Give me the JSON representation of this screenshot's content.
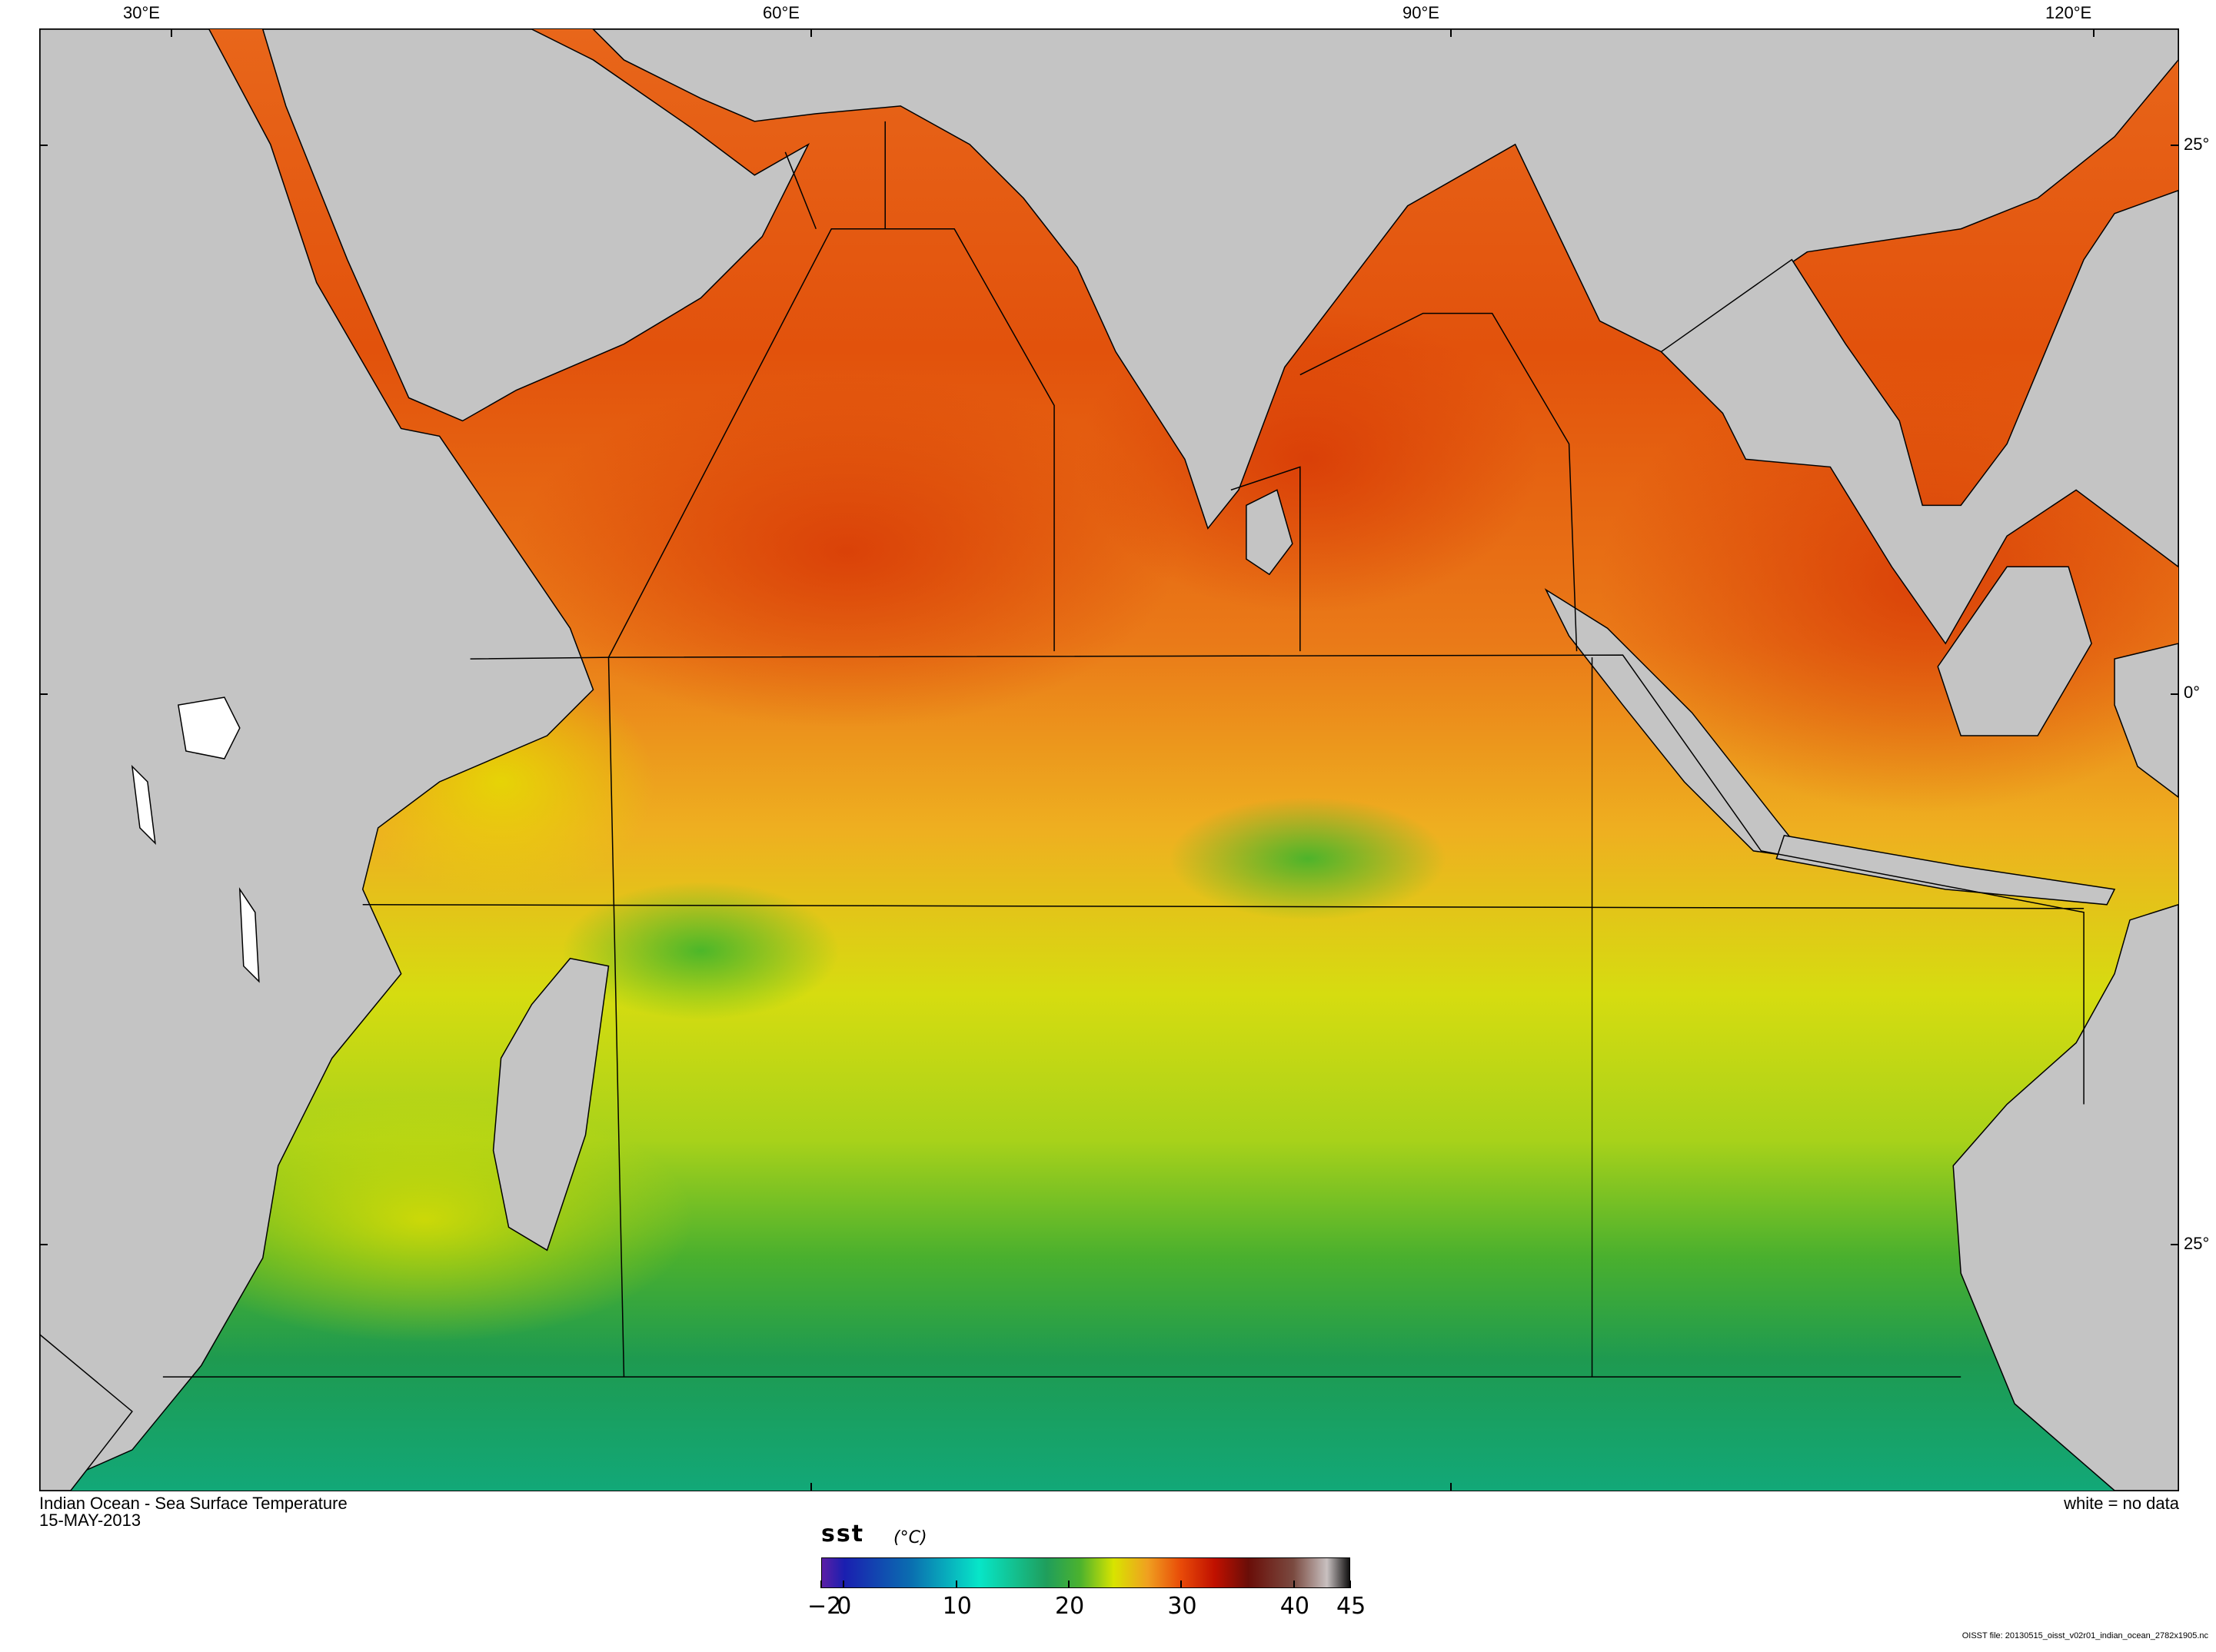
{
  "map": {
    "title": "Indian Ocean - Sea Surface Temperature",
    "date": "15-MAY-2013",
    "no_data_note": "white = no data",
    "file_note": "OISST file: 20130515_oisst_v02r01_indian_ocean_2782x1905.nc",
    "longitude_labels": [
      "30°E",
      "60°E",
      "90°E",
      "120°E"
    ],
    "latitude_labels": [
      "25°",
      "0°",
      "25°"
    ],
    "land_color": "#c4c4c4",
    "no_data_color": "#ffffff"
  },
  "colorbar": {
    "variable": "sst",
    "unit": "(°C)",
    "tick_labels": [
      "−2",
      "0",
      "10",
      "20",
      "30",
      "40",
      "45"
    ],
    "range": [
      -2,
      45
    ],
    "stops": [
      {
        "value": -2,
        "color": "#5b1fa6"
      },
      {
        "value": 0,
        "color": "#1a1fb0"
      },
      {
        "value": 6,
        "color": "#0a6fb0"
      },
      {
        "value": 12,
        "color": "#07e6c8"
      },
      {
        "value": 18,
        "color": "#1f9e5c"
      },
      {
        "value": 21,
        "color": "#4bb22e"
      },
      {
        "value": 24,
        "color": "#d8e400"
      },
      {
        "value": 27,
        "color": "#f0a020"
      },
      {
        "value": 30,
        "color": "#e84a08"
      },
      {
        "value": 33,
        "color": "#c01000"
      },
      {
        "value": 36,
        "color": "#6a0e08"
      },
      {
        "value": 40,
        "color": "#7a4a40"
      },
      {
        "value": 43,
        "color": "#c8c0c0"
      },
      {
        "value": 45,
        "color": "#101010"
      }
    ]
  }
}
